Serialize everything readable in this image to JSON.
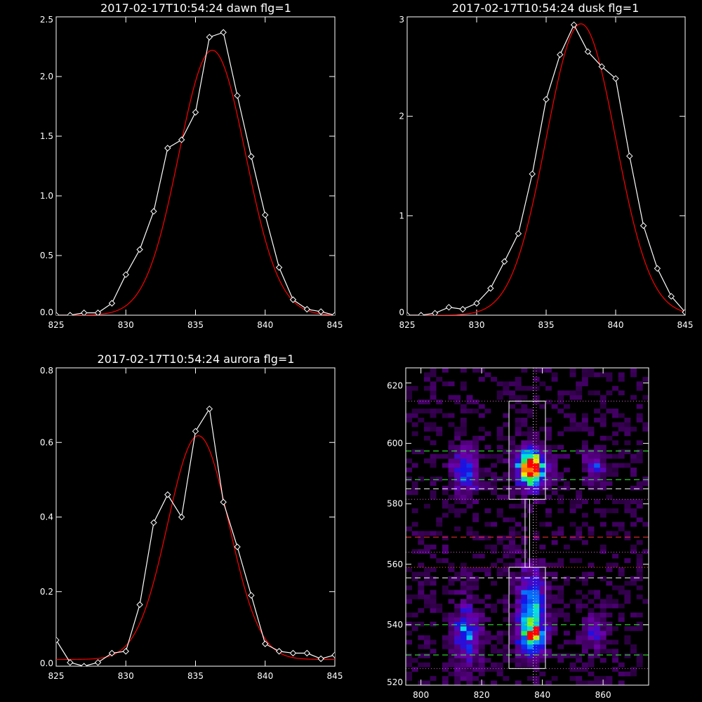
{
  "chart_data": [
    {
      "type": "line",
      "title": "2017-02-17T10:54:24 dawn flg=1",
      "xlim": [
        825,
        845
      ],
      "ylim": [
        0,
        2.5
      ],
      "xticks": [
        "825",
        "830",
        "835",
        "840",
        "845"
      ],
      "yticks": [
        "0.0",
        "0.5",
        "1.0",
        "1.5",
        "2.0",
        "2.5"
      ],
      "ytick_values": [
        0,
        0.5,
        1.0,
        1.5,
        2.0,
        2.5
      ],
      "series": [
        {
          "color": "#ffffff",
          "marker": "diamond",
          "x": [
            825,
            826,
            827,
            828,
            829,
            830,
            831,
            832,
            833,
            834,
            835,
            836,
            837,
            838,
            839,
            840,
            841,
            842,
            843,
            844,
            845
          ],
          "y": [
            0.0,
            0.0,
            0.02,
            0.02,
            0.1,
            0.34,
            0.55,
            0.87,
            1.4,
            1.47,
            1.7,
            2.33,
            2.37,
            1.84,
            1.33,
            0.84,
            0.4,
            0.13,
            0.05,
            0.03,
            0.0
          ]
        },
        {
          "color": "#ff0000",
          "fit": "gaussian",
          "amplitude": 2.22,
          "center": 836.2,
          "sigma": 2.4,
          "baseline": 0.0
        }
      ]
    },
    {
      "type": "line",
      "title": "2017-02-17T10:54:24 dusk flg=1",
      "xlim": [
        825,
        845
      ],
      "ylim": [
        0,
        3
      ],
      "xticks": [
        "825",
        "830",
        "835",
        "840",
        "845"
      ],
      "yticks": [
        "0",
        "1",
        "2",
        "3"
      ],
      "ytick_values": [
        0,
        1,
        2,
        3
      ],
      "series": [
        {
          "color": "#ffffff",
          "marker": "diamond",
          "x": [
            825,
            826,
            827,
            828,
            829,
            830,
            831,
            832,
            833,
            834,
            835,
            836,
            837,
            838,
            839,
            840,
            841,
            842,
            843,
            844,
            845
          ],
          "y": [
            0.0,
            0.0,
            0.02,
            0.08,
            0.06,
            0.12,
            0.27,
            0.54,
            0.82,
            1.42,
            2.17,
            2.62,
            2.92,
            2.65,
            2.5,
            2.38,
            1.6,
            0.9,
            0.47,
            0.19,
            0.03
          ]
        },
        {
          "color": "#ff0000",
          "fit": "gaussian",
          "amplitude": 2.93,
          "center": 837.5,
          "sigma": 2.5,
          "baseline": 0.0
        }
      ]
    },
    {
      "type": "line",
      "title": "2017-02-17T10:54:24 aurora flg=1",
      "xlim": [
        825,
        845
      ],
      "ylim": [
        0,
        0.8
      ],
      "xticks": [
        "825",
        "830",
        "835",
        "840",
        "845"
      ],
      "yticks": [
        "0.0",
        "0.2",
        "0.4",
        "0.6",
        "0.8"
      ],
      "ytick_values": [
        0,
        0.2,
        0.4,
        0.6,
        0.8
      ],
      "series": [
        {
          "color": "#ffffff",
          "marker": "diamond",
          "x": [
            825,
            826,
            827,
            828,
            829,
            830,
            831,
            832,
            833,
            834,
            835,
            836,
            837,
            838,
            839,
            840,
            841,
            842,
            843,
            844,
            845
          ],
          "y": [
            0.07,
            0.01,
            0.0,
            0.01,
            0.035,
            0.04,
            0.165,
            0.385,
            0.46,
            0.4,
            0.63,
            0.69,
            0.44,
            0.32,
            0.19,
            0.06,
            0.04,
            0.035,
            0.035,
            0.02,
            0.03
          ]
        },
        {
          "color": "#ff0000",
          "fit": "gaussian",
          "amplitude": 0.6,
          "center": 835.2,
          "sigma": 2.2,
          "baseline": 0.018
        }
      ]
    },
    {
      "type": "heatmap",
      "title": "",
      "xlim": [
        795,
        875
      ],
      "ylim": [
        520,
        625
      ],
      "xticks": [
        "800",
        "820",
        "840",
        "860"
      ],
      "xtick_values": [
        800,
        820,
        840,
        860
      ],
      "yticks": [
        "520",
        "540",
        "560",
        "580",
        "600",
        "620"
      ],
      "ytick_values": [
        520,
        540,
        560,
        580,
        600,
        620
      ],
      "hot_spots": [
        {
          "x": 836.5,
          "y": 592,
          "intensity": 1.0,
          "sx": 3.2,
          "sy": 4.5
        },
        {
          "x": 836.5,
          "y": 537,
          "intensity": 0.7,
          "sx": 3.0,
          "sy": 5.0
        },
        {
          "x": 836.5,
          "y": 548,
          "intensity": 0.45,
          "sx": 3.0,
          "sy": 8.0
        },
        {
          "x": 815,
          "y": 591,
          "intensity": 0.45,
          "sx": 3.0,
          "sy": 5.0
        },
        {
          "x": 815,
          "y": 537,
          "intensity": 0.45,
          "sx": 3.0,
          "sy": 7.0
        },
        {
          "x": 857,
          "y": 593,
          "intensity": 0.3,
          "sx": 2.5,
          "sy": 4.0
        },
        {
          "x": 857,
          "y": 538,
          "intensity": 0.3,
          "sx": 2.5,
          "sy": 4.0
        }
      ],
      "boxes": [
        {
          "x0": 829,
          "x1": 841,
          "y0": 581.5,
          "y1": 614,
          "color": "#ffffff"
        },
        {
          "x0": 829,
          "x1": 841,
          "y0": 525.5,
          "y1": 559,
          "color": "#ffffff"
        },
        {
          "x0": 834.3,
          "x1": 835.8,
          "y0": 559,
          "y1": 581.5,
          "color": "#ffffff"
        }
      ],
      "hlines": [
        {
          "y": 614,
          "color": "#cc66cc",
          "style": "dotted"
        },
        {
          "y": 597.5,
          "color": "#33ff33",
          "style": "dashed"
        },
        {
          "y": 588,
          "color": "#33ff33",
          "style": "dashed"
        },
        {
          "y": 585,
          "color": "#ffffff",
          "style": "dashed"
        },
        {
          "y": 581.5,
          "color": "#cc66cc",
          "style": "dotted"
        },
        {
          "y": 569,
          "color": "#ff3333",
          "style": "dashed"
        },
        {
          "y": 564,
          "color": "#cc66cc",
          "style": "dotted"
        },
        {
          "y": 559,
          "color": "#ff6600",
          "style": "dotted"
        },
        {
          "y": 555.5,
          "color": "#ffffff",
          "style": "dashed"
        },
        {
          "y": 540,
          "color": "#33ff33",
          "style": "dashed"
        },
        {
          "y": 530,
          "color": "#33ff33",
          "style": "dashed"
        },
        {
          "y": 525.5,
          "color": "#cc66cc",
          "style": "dotted"
        }
      ],
      "vlines": [
        {
          "x": 837,
          "color": "#ffffff",
          "style": "dotted"
        },
        {
          "x": 838,
          "color": "#ff66cc",
          "style": "dotted"
        }
      ]
    }
  ]
}
